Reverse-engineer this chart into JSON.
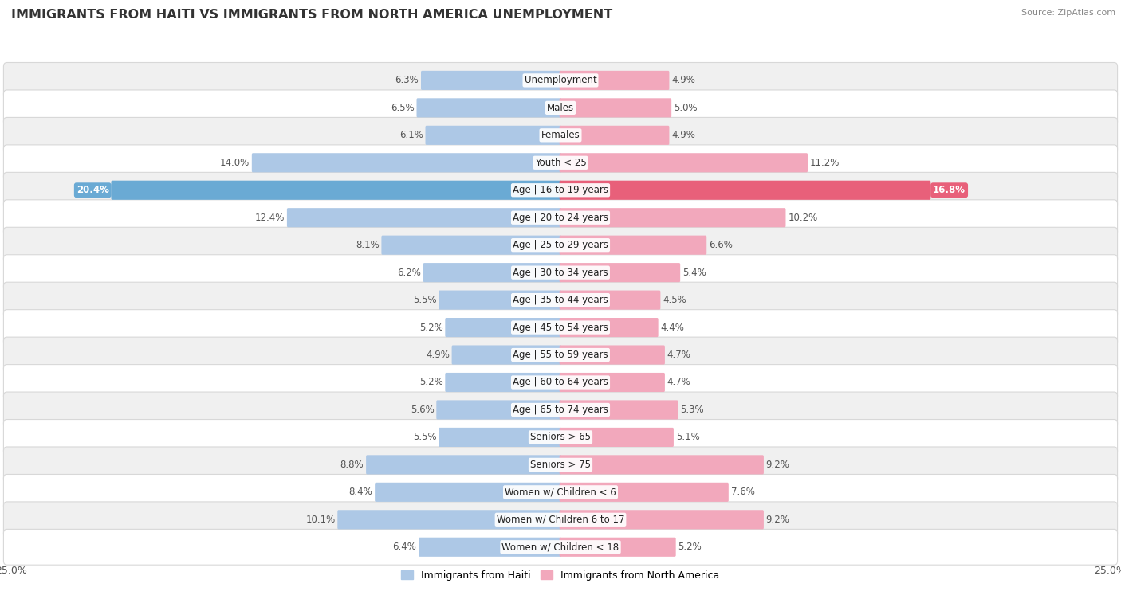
{
  "title": "IMMIGRANTS FROM HAITI VS IMMIGRANTS FROM NORTH AMERICA UNEMPLOYMENT",
  "source": "Source: ZipAtlas.com",
  "categories": [
    "Unemployment",
    "Males",
    "Females",
    "Youth < 25",
    "Age | 16 to 19 years",
    "Age | 20 to 24 years",
    "Age | 25 to 29 years",
    "Age | 30 to 34 years",
    "Age | 35 to 44 years",
    "Age | 45 to 54 years",
    "Age | 55 to 59 years",
    "Age | 60 to 64 years",
    "Age | 65 to 74 years",
    "Seniors > 65",
    "Seniors > 75",
    "Women w/ Children < 6",
    "Women w/ Children 6 to 17",
    "Women w/ Children < 18"
  ],
  "haiti_values": [
    6.3,
    6.5,
    6.1,
    14.0,
    20.4,
    12.4,
    8.1,
    6.2,
    5.5,
    5.2,
    4.9,
    5.2,
    5.6,
    5.5,
    8.8,
    8.4,
    10.1,
    6.4
  ],
  "north_america_values": [
    4.9,
    5.0,
    4.9,
    11.2,
    16.8,
    10.2,
    6.6,
    5.4,
    4.5,
    4.4,
    4.7,
    4.7,
    5.3,
    5.1,
    9.2,
    7.6,
    9.2,
    5.2
  ],
  "haiti_color": "#adc8e6",
  "north_america_color": "#f2a8bc",
  "haiti_highlight_color": "#6aaad4",
  "north_america_highlight_color": "#e8607a",
  "haiti_label": "Immigrants from Haiti",
  "north_america_label": "Immigrants from North America",
  "x_max": 25.0,
  "bar_height": 0.6,
  "row_colors": [
    "#f0f0f0",
    "#ffffff"
  ],
  "highlight_idx": 4,
  "title_fontsize": 11.5,
  "source_fontsize": 8,
  "category_fontsize": 8.5,
  "value_fontsize": 8.5
}
